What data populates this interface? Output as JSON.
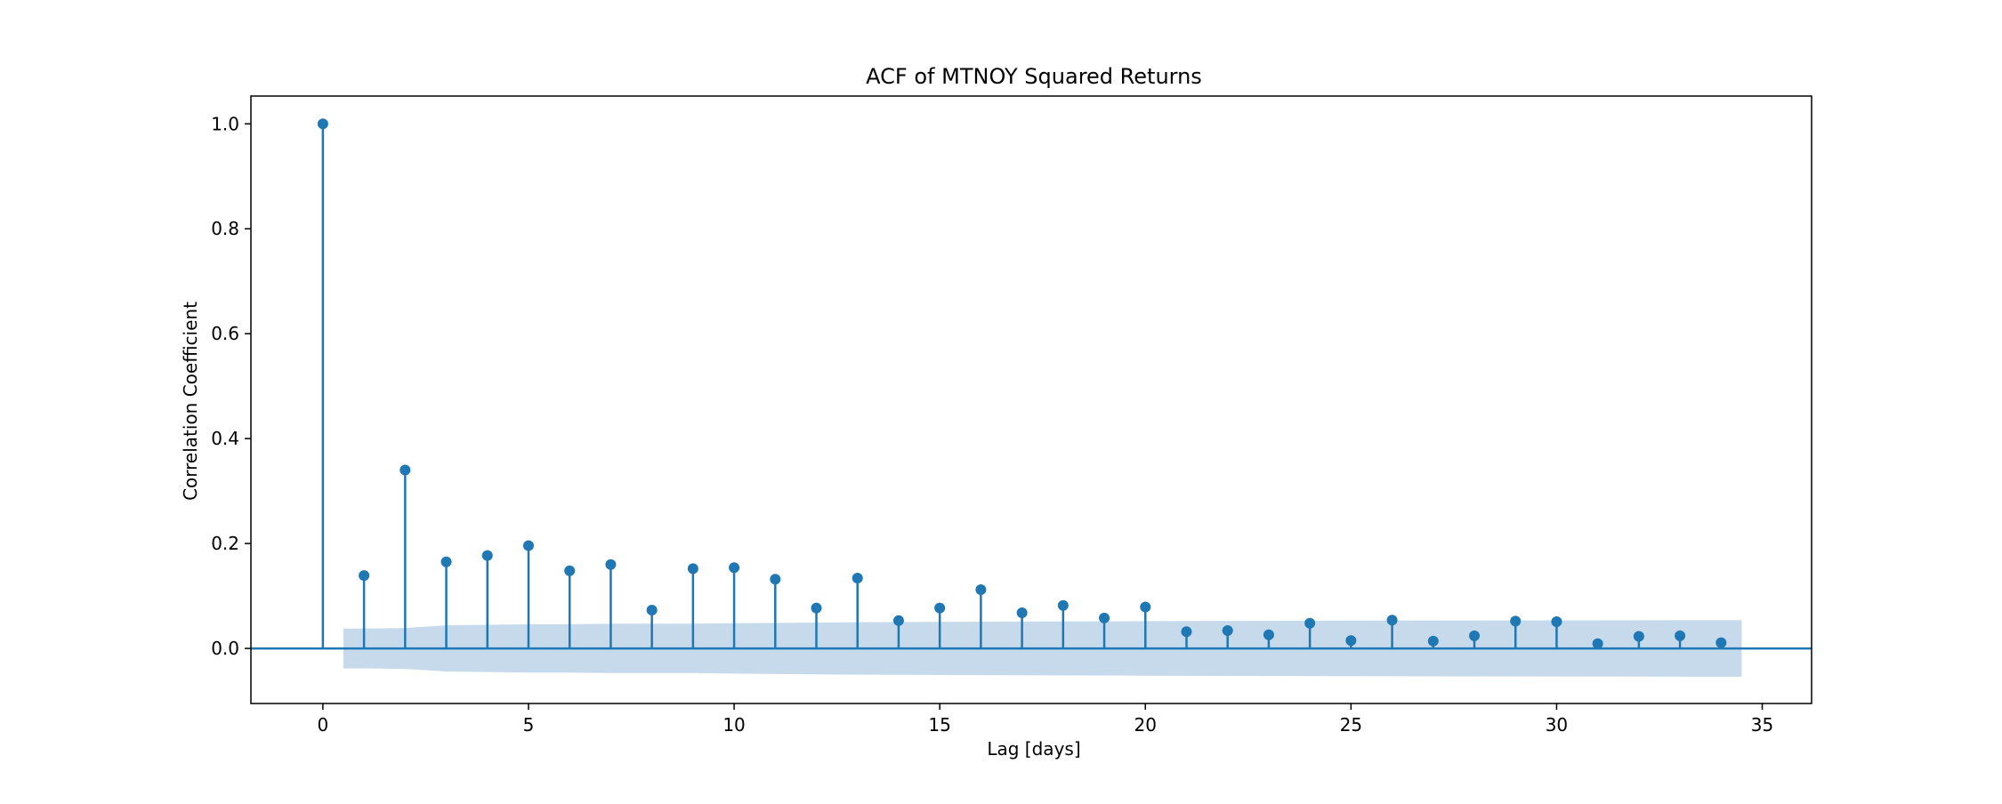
{
  "chart_data": {
    "type": "stem",
    "title": "ACF of MTNOY Squared Returns",
    "xlabel": "Lag [days]",
    "ylabel": "Correlation Coefficient",
    "xlim": [
      -1.75,
      36.2
    ],
    "ylim": [
      -0.105,
      1.053
    ],
    "xticks": [
      0,
      5,
      10,
      15,
      20,
      25,
      30,
      35
    ],
    "yticks": [
      0.0,
      0.2,
      0.4,
      0.6,
      0.8,
      1.0
    ],
    "ytick_labels": [
      "0.0",
      "0.2",
      "0.4",
      "0.6",
      "0.8",
      "1.0"
    ],
    "grid": false,
    "lags": [
      0,
      1,
      2,
      3,
      4,
      5,
      6,
      7,
      8,
      9,
      10,
      11,
      12,
      13,
      14,
      15,
      16,
      17,
      18,
      19,
      20,
      21,
      22,
      23,
      24,
      25,
      26,
      27,
      28,
      29,
      30,
      31,
      32,
      33,
      34
    ],
    "values": [
      1.0,
      0.139,
      0.34,
      0.165,
      0.177,
      0.196,
      0.148,
      0.16,
      0.073,
      0.152,
      0.154,
      0.132,
      0.077,
      0.134,
      0.053,
      0.077,
      0.112,
      0.068,
      0.082,
      0.058,
      0.079,
      0.032,
      0.034,
      0.026,
      0.048,
      0.015,
      0.054,
      0.014,
      0.024,
      0.052,
      0.051,
      0.009,
      0.023,
      0.024,
      0.011
    ],
    "confidence_band": {
      "x": [
        0.5,
        1.0,
        2.0,
        3.0,
        4.0,
        5.0,
        6.0,
        7.0,
        8.0,
        9.0,
        10.0,
        13.0,
        20.0,
        25.0,
        34.5
      ],
      "upper": [
        0.038,
        0.038,
        0.039,
        0.044,
        0.045,
        0.046,
        0.046,
        0.047,
        0.047,
        0.047,
        0.048,
        0.05,
        0.052,
        0.053,
        0.054
      ],
      "lower": [
        -0.038,
        -0.038,
        -0.039,
        -0.044,
        -0.045,
        -0.046,
        -0.046,
        -0.047,
        -0.047,
        -0.047,
        -0.048,
        -0.05,
        -0.052,
        -0.053,
        -0.054
      ]
    },
    "colors": {
      "stem": "#1f77b4",
      "band": "#c6daec",
      "axis": "#000000"
    }
  }
}
